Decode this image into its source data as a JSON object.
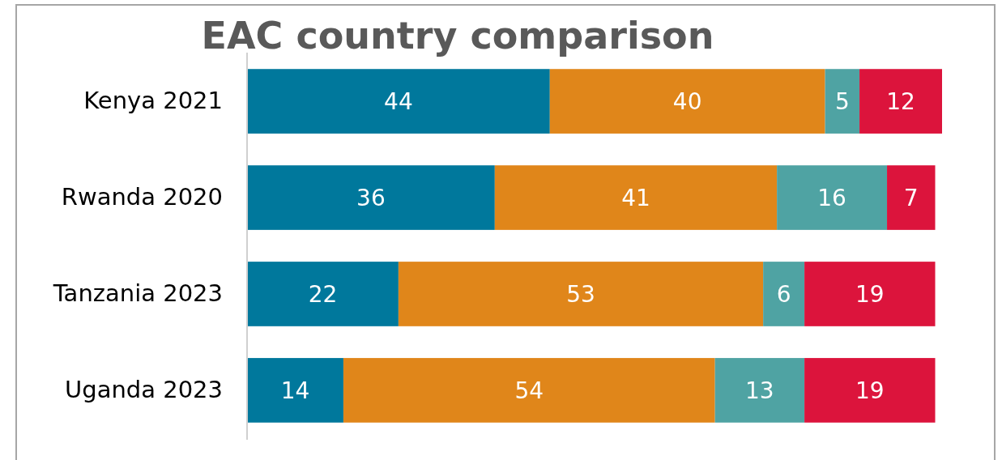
{
  "chart_data": {
    "type": "bar",
    "orientation": "horizontal",
    "stacked": true,
    "title": "EAC country comparison",
    "categories": [
      "Kenya 2021",
      "Rwanda 2020",
      "Tanzania 2023",
      "Uganda 2023"
    ],
    "series": [
      {
        "color": "#00789c",
        "values": [
          44,
          36,
          22,
          14
        ]
      },
      {
        "color": "#e0861a",
        "values": [
          40,
          41,
          53,
          54
        ]
      },
      {
        "color": "#4fa3a3",
        "values": [
          5,
          16,
          6,
          13
        ]
      },
      {
        "color": "#dc143c",
        "values": [
          12,
          7,
          19,
          19
        ]
      }
    ],
    "data_labels": true,
    "grid": false,
    "tick_labels": "y"
  }
}
